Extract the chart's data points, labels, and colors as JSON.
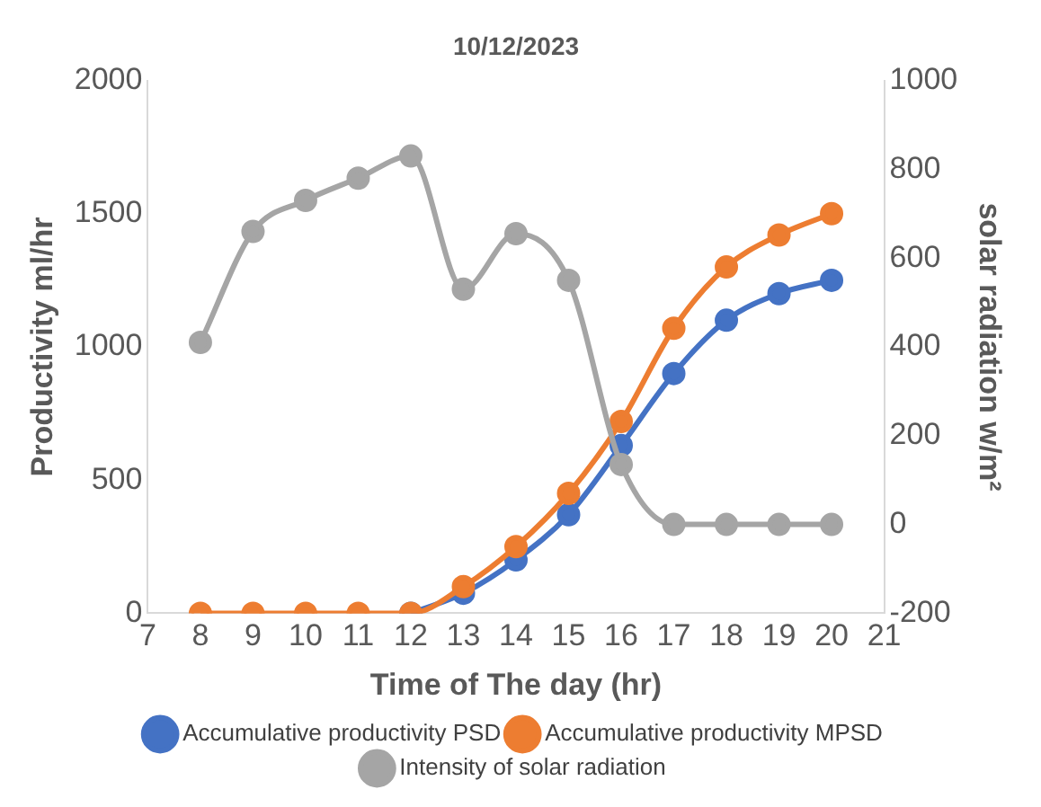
{
  "chart_data": {
    "type": "line",
    "title": "10/12/2023",
    "xlabel": "Time of The day (hr)",
    "ylabel": "Productivity ml/hr",
    "y2label": "solar radiation w/m²",
    "x": [
      8,
      9,
      10,
      11,
      12,
      13,
      14,
      15,
      16,
      17,
      18,
      19,
      20
    ],
    "xlim": [
      7,
      21
    ],
    "xticks": [
      7,
      8,
      9,
      10,
      11,
      12,
      13,
      14,
      15,
      16,
      17,
      18,
      19,
      20,
      21
    ],
    "ylim": [
      0,
      2000
    ],
    "yticks": [
      0,
      500,
      1000,
      1500,
      2000
    ],
    "y2lim": [
      -200,
      1000
    ],
    "y2ticks": [
      -200,
      0,
      200,
      400,
      600,
      800,
      1000
    ],
    "marker": "circle",
    "line_style": "solid",
    "legend": "bottom",
    "series": [
      {
        "name": "Accumulative productivity PSD",
        "color": "#4472c4",
        "values": [
          null,
          null,
          null,
          null,
          0,
          75,
          200,
          370,
          630,
          900,
          1100,
          1200,
          1250
        ]
      },
      {
        "name": "Accumulative productivity MPSD",
        "color": "#ed7d31",
        "values": [
          0,
          0,
          0,
          0,
          0,
          100,
          250,
          450,
          720,
          1070,
          1300,
          1420,
          1500
        ]
      },
      {
        "name": "Intensity of solar radiation",
        "color": "#a5a5a5",
        "axis": "y2",
        "values": [
          410,
          660,
          730,
          780,
          830,
          530,
          655,
          550,
          135,
          0,
          0,
          0,
          0
        ]
      }
    ]
  }
}
